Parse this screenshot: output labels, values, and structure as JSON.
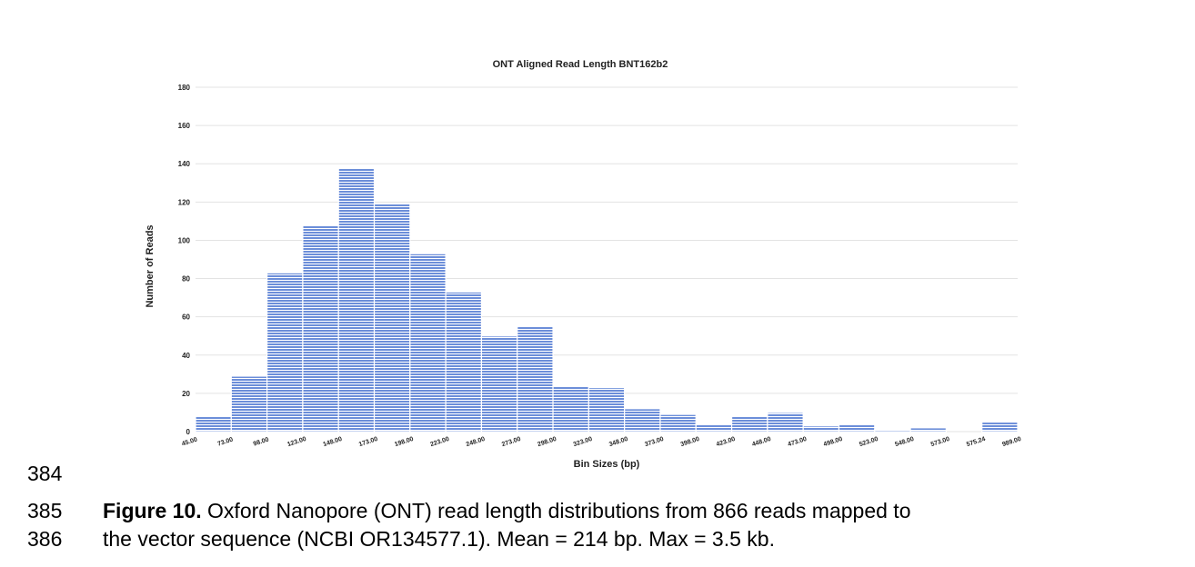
{
  "chart_data": {
    "type": "histogram",
    "title": "ONT Aligned Read Length BNT162b2",
    "xlabel": "Bin Sizes (bp)",
    "ylabel": "Number of Reads",
    "bins": [
      "45.00",
      "73.00",
      "98.00",
      "123.00",
      "148.00",
      "173.00",
      "198.00",
      "223.00",
      "248.00",
      "273.00",
      "298.00",
      "323.00",
      "348.00",
      "373.00",
      "398.00",
      "423.00",
      "448.00",
      "473.00",
      "498.00",
      "523.00",
      "548.00",
      "573.00",
      "575.24",
      "989.00"
    ],
    "values": [
      8,
      29,
      83,
      108,
      138,
      119,
      93,
      73,
      50,
      55,
      24,
      23,
      12,
      9,
      4,
      8,
      10,
      3,
      4,
      1,
      2,
      0,
      5
    ],
    "color": "#6c8ed9",
    "ylim": [
      0,
      180
    ],
    "yticks": [
      0,
      20,
      40,
      60,
      80,
      100,
      120,
      140,
      160,
      180
    ],
    "grid": true
  },
  "document": {
    "line_numbers": [
      "384",
      "385",
      "386"
    ],
    "caption": {
      "label": "Figure 10.",
      "lines": [
        "Oxford Nanopore (ONT) read length distributions from 866 reads mapped to",
        "the vector sequence (NCBI OR134577.1). Mean = 214 bp. Max = 3.5 kb."
      ]
    }
  }
}
